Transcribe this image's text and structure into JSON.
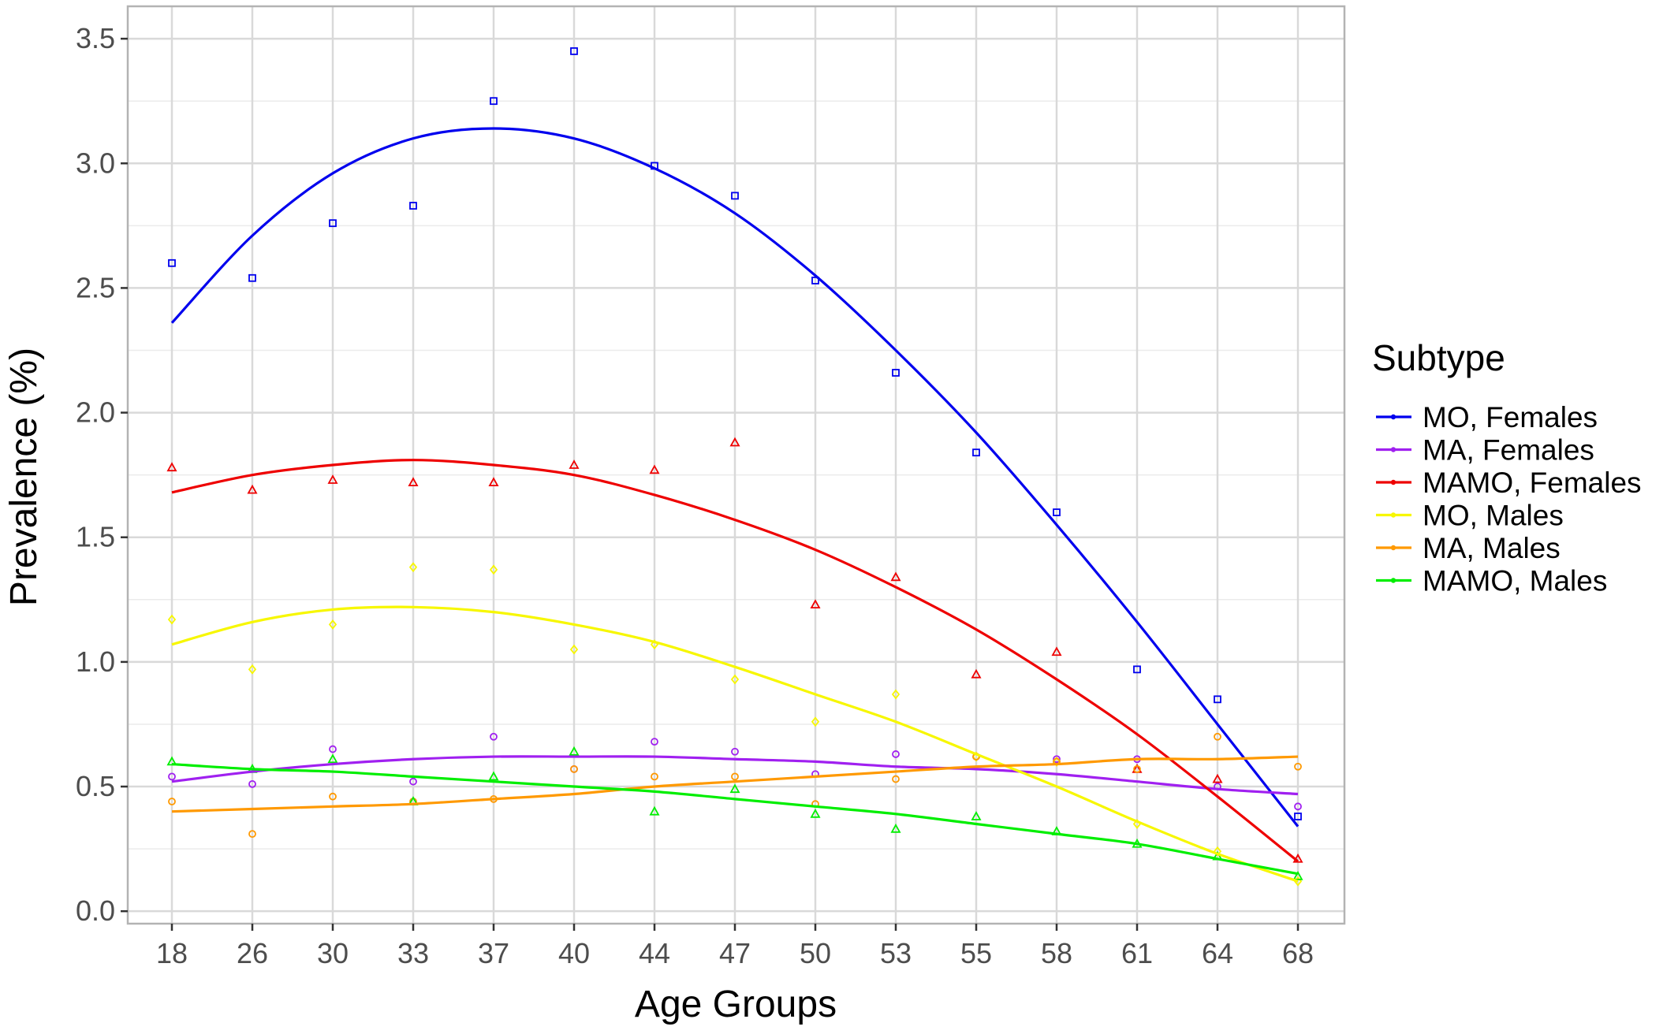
{
  "chart_data": {
    "type": "line",
    "title": "",
    "xlabel": "Age Groups",
    "ylabel": "Prevalence (%)",
    "categories": [
      "18",
      "26",
      "30",
      "33",
      "37",
      "40",
      "44",
      "47",
      "50",
      "53",
      "55",
      "58",
      "61",
      "64",
      "68"
    ],
    "yticks": [
      "0.0",
      "0.5",
      "1.0",
      "1.5",
      "2.0",
      "2.5",
      "3.0",
      "3.5"
    ],
    "ylim": [
      -0.05,
      3.63
    ],
    "grid": true,
    "legend": {
      "title": "Subtype",
      "placement": "right"
    },
    "series": [
      {
        "name": "MO, Females",
        "color": "#0000ee",
        "marker": "square",
        "points": [
          2.6,
          2.54,
          2.76,
          2.83,
          3.25,
          3.45,
          2.99,
          2.87,
          2.53,
          2.16,
          1.84,
          1.6,
          0.97,
          0.85,
          0.38
        ],
        "trend": [
          2.36,
          2.71,
          2.96,
          3.1,
          3.14,
          3.1,
          2.98,
          2.8,
          2.55,
          2.25,
          1.92,
          1.55,
          1.16,
          0.75,
          0.34
        ]
      },
      {
        "name": "MA, Females",
        "color": "#a020f0",
        "marker": "circle",
        "points": [
          0.54,
          0.51,
          0.65,
          0.52,
          0.7,
          0.57,
          0.68,
          0.64,
          0.55,
          0.63,
          0.62,
          0.61,
          0.61,
          0.5,
          0.42
        ],
        "trend": [
          0.52,
          0.56,
          0.59,
          0.61,
          0.62,
          0.62,
          0.62,
          0.61,
          0.6,
          0.58,
          0.57,
          0.55,
          0.52,
          0.49,
          0.47
        ]
      },
      {
        "name": "MAMO, Females",
        "color": "#ee0000",
        "marker": "triangle",
        "points": [
          1.78,
          1.69,
          1.73,
          1.72,
          1.72,
          1.79,
          1.77,
          1.88,
          1.23,
          1.34,
          0.95,
          1.04,
          0.57,
          0.53,
          0.21
        ],
        "trend": [
          1.68,
          1.75,
          1.79,
          1.81,
          1.79,
          1.75,
          1.67,
          1.57,
          1.45,
          1.3,
          1.13,
          0.93,
          0.71,
          0.46,
          0.2
        ]
      },
      {
        "name": "MO, Males",
        "color": "#f7f700",
        "marker": "diamond",
        "points": [
          1.17,
          0.97,
          1.15,
          1.38,
          1.37,
          1.05,
          1.07,
          0.93,
          0.76,
          0.87,
          0.62,
          0.6,
          0.35,
          0.24,
          0.12
        ],
        "trend": [
          1.07,
          1.16,
          1.21,
          1.22,
          1.2,
          1.15,
          1.08,
          0.98,
          0.87,
          0.76,
          0.63,
          0.5,
          0.36,
          0.23,
          0.12
        ]
      },
      {
        "name": "MA, Males",
        "color": "#ff9900",
        "marker": "circle",
        "points": [
          0.44,
          0.31,
          0.46,
          0.44,
          0.45,
          0.57,
          0.54,
          0.54,
          0.43,
          0.53,
          0.62,
          0.6,
          0.57,
          0.7,
          0.58
        ],
        "trend": [
          0.4,
          0.41,
          0.42,
          0.43,
          0.45,
          0.47,
          0.5,
          0.52,
          0.54,
          0.56,
          0.58,
          0.59,
          0.61,
          0.61,
          0.62
        ]
      },
      {
        "name": "MAMO, Males",
        "color": "#00ee00",
        "marker": "triangle",
        "points": [
          0.6,
          0.57,
          0.61,
          0.44,
          0.54,
          0.64,
          0.4,
          0.49,
          0.39,
          0.33,
          0.38,
          0.32,
          0.27,
          0.22,
          0.14
        ],
        "trend": [
          0.59,
          0.57,
          0.56,
          0.54,
          0.52,
          0.5,
          0.48,
          0.45,
          0.42,
          0.39,
          0.35,
          0.31,
          0.27,
          0.21,
          0.15
        ]
      }
    ]
  }
}
